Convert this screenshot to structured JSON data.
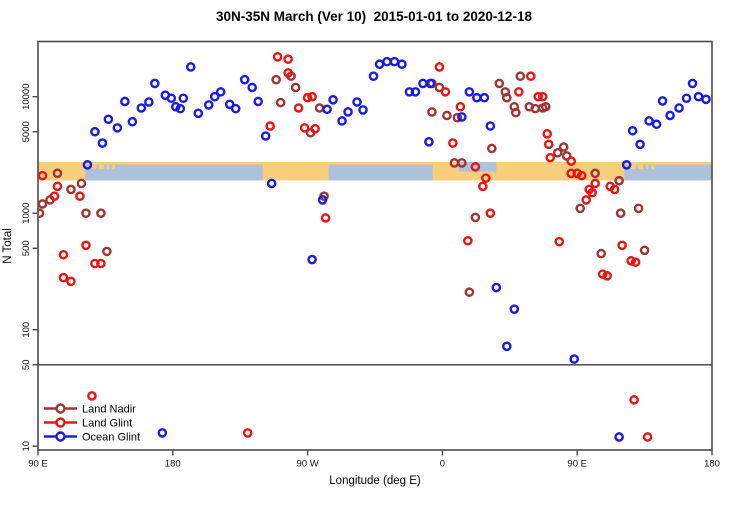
{
  "title": "30N-35N March (Ver 10)  2015-01-01 to 2020-12-18",
  "chart_data": {
    "type": "scatter",
    "title": "30N-35N March (Ver 10)  2015-01-01 to 2020-12-18",
    "xlabel": "Longitude (deg E)",
    "ylabel": "N Total",
    "y_scale": "log",
    "ylim": [
      9,
      25000
    ],
    "x_axis": {
      "note": "longitude axis wraps eastward from 90E through 180, 90W, 0, 90E to 180; stored as 90..540 plot degrees",
      "range_plot_deg": [
        90,
        540
      ],
      "ticks": [
        {
          "plot_deg": 90,
          "label": "90 E"
        },
        {
          "plot_deg": 180,
          "label": "180"
        },
        {
          "plot_deg": 270,
          "label": "90 W"
        },
        {
          "plot_deg": 360,
          "label": "0"
        },
        {
          "plot_deg": 450,
          "label": "90 E"
        },
        {
          "plot_deg": 540,
          "label": "180"
        }
      ]
    },
    "y_axis": {
      "ticks": [
        {
          "value": 10000,
          "label": "10000"
        },
        {
          "value": 5000,
          "label": "5000"
        },
        {
          "value": 1000,
          "label": "1000"
        },
        {
          "value": 500,
          "label": "500"
        },
        {
          "value": 100,
          "label": "100"
        },
        {
          "value": 50,
          "label": "50"
        },
        {
          "value": 10,
          "label": "10"
        }
      ]
    },
    "reference_line_value": 50,
    "map_strip": {
      "description": "land/ocean map band for 30N-35N drawn across the plot",
      "land_color": "#F8CE7C",
      "ocean_color": "#ACC1DC",
      "band_n_range": [
        1910,
        2750
      ],
      "ocean_segments_plot_deg": [
        [
          121.5,
          240
        ],
        [
          284,
          353.5
        ],
        [
          481.5,
          540
        ]
      ],
      "mediterranean_notch_plot_deg": [
        371,
        396
      ],
      "island_patches_plot_deg": [
        [
          126,
          129
        ],
        [
          130.5,
          134
        ],
        [
          136,
          137.5
        ],
        [
          139.5,
          141.5
        ],
        [
          486,
          489
        ],
        [
          490.5,
          494
        ],
        [
          496,
          497.5
        ],
        [
          499.5,
          501.5
        ]
      ]
    },
    "legend": {
      "position": "bottom-left"
    },
    "series": [
      {
        "name": "Land Nadir",
        "color": "#A03434",
        "points": [
          [
            103,
            2200
          ],
          [
            119,
            1800
          ],
          [
            112,
            1600
          ],
          [
            98,
            1300
          ],
          [
            93,
            1200
          ],
          [
            91,
            1000
          ],
          [
            122,
            1000
          ],
          [
            132,
            1000
          ],
          [
            136,
            470
          ],
          [
            249,
            14000
          ],
          [
            259,
            15000
          ],
          [
            262,
            12000
          ],
          [
            252,
            8900
          ],
          [
            278,
            8000
          ],
          [
            272,
            4900
          ],
          [
            281,
            1400
          ],
          [
            353,
            13000
          ],
          [
            358,
            12000
          ],
          [
            353,
            7400
          ],
          [
            363,
            6900
          ],
          [
            370,
            6600
          ],
          [
            393,
            3600
          ],
          [
            368,
            2700
          ],
          [
            373,
            2700
          ],
          [
            382,
            920
          ],
          [
            378,
            210
          ],
          [
            412,
            15000
          ],
          [
            398,
            13000
          ],
          [
            402,
            11000
          ],
          [
            403,
            9800
          ],
          [
            408,
            8200
          ],
          [
            418,
            8200
          ],
          [
            422,
            7900
          ],
          [
            427,
            8000
          ],
          [
            409,
            7300
          ],
          [
            429,
            8200
          ],
          [
            437,
            3300
          ],
          [
            441,
            3700
          ],
          [
            443,
            3100
          ],
          [
            462,
            2200
          ],
          [
            478,
            1900
          ],
          [
            452,
            1100
          ],
          [
            479,
            1000
          ],
          [
            491,
            1100
          ],
          [
            466,
            450
          ],
          [
            495,
            480
          ]
        ]
      },
      {
        "name": "Land Glint",
        "color": "#EE1212",
        "points": [
          [
            93,
            2100
          ],
          [
            103,
            1700
          ],
          [
            101,
            1400
          ],
          [
            118,
            1400
          ],
          [
            122,
            530
          ],
          [
            128,
            370
          ],
          [
            132,
            370
          ],
          [
            107,
            440
          ],
          [
            107,
            280
          ],
          [
            112,
            260
          ],
          [
            126,
            27
          ],
          [
            230,
            13
          ],
          [
            250,
            22000
          ],
          [
            257,
            21000
          ],
          [
            257,
            16000
          ],
          [
            273,
            10000
          ],
          [
            270,
            9800
          ],
          [
            264,
            8000
          ],
          [
            245,
            5600
          ],
          [
            268,
            5400
          ],
          [
            275,
            5300
          ],
          [
            282,
            910
          ],
          [
            358,
            18000
          ],
          [
            362,
            11000
          ],
          [
            372,
            8200
          ],
          [
            367,
            4000
          ],
          [
            382,
            2500
          ],
          [
            389,
            2000
          ],
          [
            387,
            1700
          ],
          [
            392,
            1000
          ],
          [
            377,
            580
          ],
          [
            411,
            11000
          ],
          [
            419,
            15000
          ],
          [
            424,
            10000
          ],
          [
            427,
            10000
          ],
          [
            430,
            4800
          ],
          [
            431,
            3900
          ],
          [
            432,
            3000
          ],
          [
            446,
            2800
          ],
          [
            446,
            2200
          ],
          [
            450,
            2200
          ],
          [
            453,
            2100
          ],
          [
            462,
            1800
          ],
          [
            458,
            1600
          ],
          [
            460,
            1500
          ],
          [
            456,
            1300
          ],
          [
            472,
            1700
          ],
          [
            475,
            1600
          ],
          [
            438,
            570
          ],
          [
            480,
            530
          ],
          [
            486,
            390
          ],
          [
            489,
            380
          ],
          [
            467,
            300
          ],
          [
            470,
            290
          ],
          [
            488,
            25
          ],
          [
            497,
            12
          ]
        ]
      },
      {
        "name": "Ocean Glint",
        "color": "#1A1AE8",
        "points": [
          [
            123,
            2600
          ],
          [
            128,
            5000
          ],
          [
            133,
            4000
          ],
          [
            137,
            6400
          ],
          [
            143,
            5400
          ],
          [
            148,
            9100
          ],
          [
            153,
            6100
          ],
          [
            159,
            8000
          ],
          [
            164,
            9000
          ],
          [
            168,
            13000
          ],
          [
            175,
            10300
          ],
          [
            179,
            9700
          ],
          [
            182,
            8200
          ],
          [
            185,
            7900
          ],
          [
            187,
            9700
          ],
          [
            192,
            18000
          ],
          [
            197,
            7200
          ],
          [
            204,
            8500
          ],
          [
            208,
            10000
          ],
          [
            212,
            11000
          ],
          [
            218,
            8600
          ],
          [
            222,
            7900
          ],
          [
            228,
            14000
          ],
          [
            233,
            12000
          ],
          [
            237,
            9100
          ],
          [
            242,
            4600
          ],
          [
            246,
            1800
          ],
          [
            280,
            1300
          ],
          [
            273,
            400
          ],
          [
            287,
            9400
          ],
          [
            283,
            7800
          ],
          [
            293,
            6200
          ],
          [
            297,
            7400
          ],
          [
            303,
            9000
          ],
          [
            307,
            7700
          ],
          [
            314,
            15000
          ],
          [
            318,
            19000
          ],
          [
            323,
            20000
          ],
          [
            328,
            20000
          ],
          [
            333,
            19000
          ],
          [
            338,
            11000
          ],
          [
            342,
            11000
          ],
          [
            347,
            13000
          ],
          [
            352,
            13000
          ],
          [
            351,
            4100
          ],
          [
            373,
            6700
          ],
          [
            378,
            11000
          ],
          [
            383,
            9800
          ],
          [
            388,
            9800
          ],
          [
            392,
            5600
          ],
          [
            396,
            230
          ],
          [
            403,
            72
          ],
          [
            408,
            150
          ],
          [
            448,
            56
          ],
          [
            478,
            12
          ],
          [
            173,
            13
          ],
          [
            483,
            2600
          ],
          [
            487,
            5100
          ],
          [
            492,
            3900
          ],
          [
            498,
            6200
          ],
          [
            503,
            5800
          ],
          [
            507,
            9200
          ],
          [
            512,
            6900
          ],
          [
            518,
            8000
          ],
          [
            523,
            9700
          ],
          [
            527,
            13000
          ],
          [
            531,
            10000
          ],
          [
            536,
            9500
          ]
        ]
      }
    ]
  }
}
